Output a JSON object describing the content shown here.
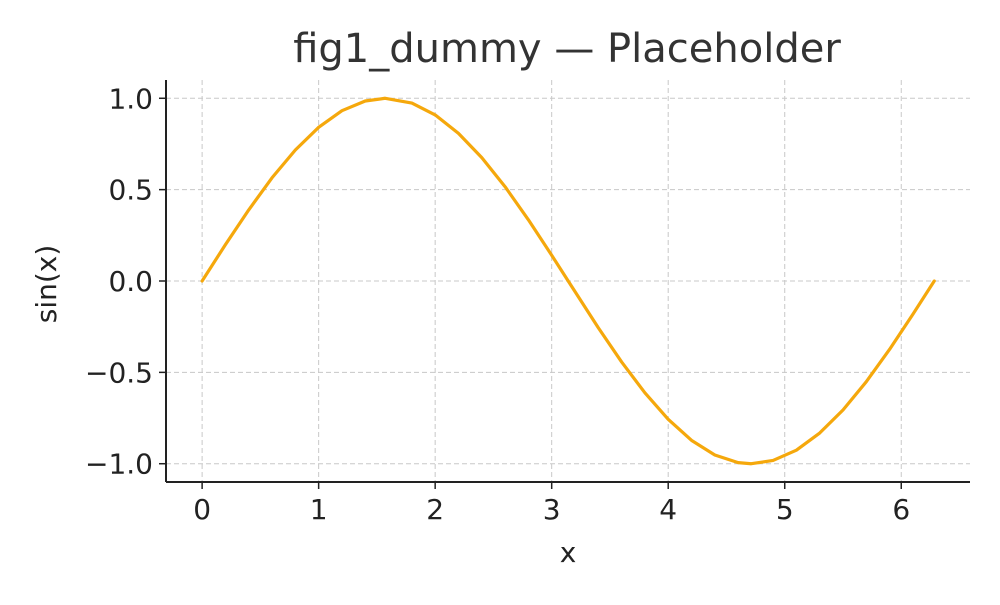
{
  "chart_data": {
    "type": "line",
    "title": "fig1_dummy — Placeholder",
    "xlabel": "x",
    "ylabel": "sin(x)",
    "xlim": [
      -0.31,
      6.59
    ],
    "ylim": [
      -1.1,
      1.1
    ],
    "xticks": [
      0,
      1,
      2,
      3,
      4,
      5,
      6
    ],
    "yticks": [
      1.0,
      0.5,
      0.0,
      -0.5,
      -1.0
    ],
    "xtick_labels": [
      "0",
      "1",
      "2",
      "3",
      "4",
      "5",
      "6"
    ],
    "ytick_labels": [
      "1.0",
      "0.5",
      "0.0",
      "−0.5",
      "−1.0"
    ],
    "grid": true,
    "series": [
      {
        "color": "#F5A80C",
        "x": [
          0,
          0.2,
          0.4,
          0.6,
          0.8,
          1.0,
          1.2,
          1.4,
          1.5708,
          1.8,
          2.0,
          2.2,
          2.4,
          2.6,
          2.8,
          3.0,
          3.1416,
          3.4,
          3.6,
          3.8,
          4.0,
          4.2,
          4.4,
          4.6,
          4.7124,
          4.9,
          5.1,
          5.3,
          5.5,
          5.7,
          5.9,
          6.1,
          6.2832
        ],
        "y": [
          0.0,
          0.199,
          0.389,
          0.565,
          0.717,
          0.841,
          0.932,
          0.985,
          1.0,
          0.974,
          0.909,
          0.808,
          0.675,
          0.516,
          0.335,
          0.141,
          0.0,
          -0.256,
          -0.443,
          -0.612,
          -0.757,
          -0.872,
          -0.952,
          -0.994,
          -1.0,
          -0.982,
          -0.926,
          -0.832,
          -0.706,
          -0.551,
          -0.374,
          -0.182,
          0.0
        ]
      }
    ]
  }
}
